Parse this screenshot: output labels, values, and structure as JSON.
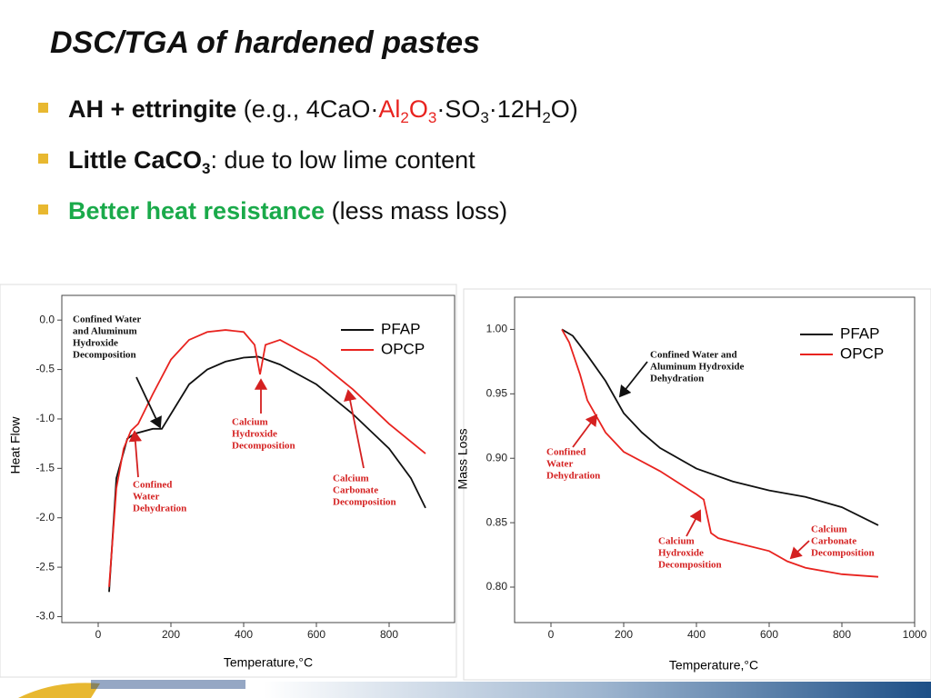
{
  "slide": {
    "title": "DSC/TGA of hardened pastes",
    "bullets": [
      [
        {
          "text": "AH + ettringite",
          "style": "bold"
        },
        {
          "text": " (e.g., 4CaO·",
          "style": "plain"
        },
        {
          "text": "Al",
          "style": "red"
        },
        {
          "text": "2",
          "style": "red-sub"
        },
        {
          "text": "O",
          "style": "red"
        },
        {
          "text": "3",
          "style": "red-sub"
        },
        {
          "text": "·SO",
          "style": "plain"
        },
        {
          "text": "3",
          "style": "sub"
        },
        {
          "text": "·12H",
          "style": "plain"
        },
        {
          "text": "2",
          "style": "sub"
        },
        {
          "text": "O)",
          "style": "plain"
        }
      ],
      [
        {
          "text": "Little CaCO",
          "style": "bold"
        },
        {
          "text": "3",
          "style": "bold-sub"
        },
        {
          "text": ": due to low lime content",
          "style": "plain"
        }
      ],
      [
        {
          "text": "Better heat resistance",
          "style": "green-bold"
        },
        {
          "text": " (less mass loss)",
          "style": "plain"
        }
      ]
    ]
  },
  "chart_data": [
    {
      "type": "line",
      "xlabel": "Temperature,°C",
      "ylabel": "Heat Flow",
      "legend": "upper right",
      "xlim": [
        -100,
        980
      ],
      "ylim": [
        -3.06,
        0.25
      ],
      "xticks": [
        0,
        200,
        400,
        600,
        800
      ],
      "yticks": [
        {
          "value": 0,
          "label": "0.0"
        },
        -0.5,
        {
          "value": -1,
          "label": "-1.0"
        },
        -1.5,
        {
          "value": -2,
          "label": "-2.0"
        },
        -2.5,
        {
          "value": -3,
          "label": "-3.0"
        }
      ],
      "series": [
        {
          "name": "PFAP",
          "color": "#111111",
          "x": [
            30,
            50,
            80,
            100,
            150,
            175,
            200,
            250,
            300,
            350,
            400,
            440,
            500,
            600,
            700,
            800,
            860,
            900
          ],
          "values": [
            -2.75,
            -1.6,
            -1.2,
            -1.15,
            -1.1,
            -1.1,
            -0.95,
            -0.65,
            -0.5,
            -0.42,
            -0.38,
            -0.37,
            -0.45,
            -0.65,
            -0.95,
            -1.3,
            -1.6,
            -1.9
          ]
        },
        {
          "name": "OPCP",
          "color": "#e8231f",
          "x": [
            30,
            50,
            70,
            90,
            110,
            150,
            200,
            250,
            300,
            350,
            400,
            430,
            445,
            460,
            500,
            600,
            700,
            800,
            900
          ],
          "values": [
            -2.7,
            -1.7,
            -1.3,
            -1.12,
            -1.05,
            -0.75,
            -0.4,
            -0.2,
            -0.12,
            -0.1,
            -0.12,
            -0.25,
            -0.55,
            -0.25,
            -0.2,
            -0.4,
            -0.7,
            -1.05,
            -1.35
          ]
        }
      ],
      "annotations": [
        {
          "lines": [
            "Confined Water",
            "and Aluminum",
            "Hydroxide",
            "Decomposition"
          ],
          "color": "#111111"
        },
        {
          "lines": [
            "Calcium",
            "Hydroxide",
            "Decomposition"
          ],
          "color": "#d42020"
        },
        {
          "lines": [
            "Confined",
            "Water",
            "Dehydration"
          ],
          "color": "#d42020"
        },
        {
          "lines": [
            "Calcium",
            "Carbonate",
            "Decomposition"
          ],
          "color": "#d42020"
        }
      ]
    },
    {
      "type": "line",
      "xlabel": "Temperature,°C",
      "ylabel": "Mass Loss",
      "legend": "upper right",
      "xlim": [
        -100,
        1000
      ],
      "ylim": [
        0.7725,
        1.025
      ],
      "xticks": [
        0,
        200,
        400,
        600,
        800,
        1000
      ],
      "yticks": [
        {
          "value": 1,
          "label": "1.00"
        },
        0.95,
        {
          "value": 0.9,
          "label": "0.90"
        },
        0.85,
        {
          "value": 0.8,
          "label": "0.80"
        }
      ],
      "series": [
        {
          "name": "PFAP",
          "color": "#111111",
          "x": [
            30,
            60,
            100,
            150,
            200,
            250,
            300,
            400,
            500,
            600,
            700,
            800,
            900
          ],
          "values": [
            1.0,
            0.995,
            0.98,
            0.96,
            0.935,
            0.92,
            0.908,
            0.892,
            0.882,
            0.875,
            0.87,
            0.862,
            0.848
          ]
        },
        {
          "name": "OPCP",
          "color": "#e8231f",
          "x": [
            30,
            50,
            80,
            100,
            150,
            200,
            300,
            400,
            420,
            430,
            440,
            460,
            500,
            600,
            650,
            700,
            800,
            900
          ],
          "values": [
            1.0,
            0.99,
            0.965,
            0.945,
            0.92,
            0.905,
            0.89,
            0.872,
            0.868,
            0.855,
            0.842,
            0.838,
            0.835,
            0.828,
            0.82,
            0.815,
            0.81,
            0.808
          ]
        }
      ],
      "annotations": [
        {
          "lines": [
            "Confined Water and",
            "Aluminum Hydroxide",
            "Dehydration"
          ],
          "color": "#111111"
        },
        {
          "lines": [
            "Confined",
            "Water",
            "Dehydration"
          ],
          "color": "#d42020"
        },
        {
          "lines": [
            "Calcium",
            "Hydroxide",
            "Decomposition"
          ],
          "color": "#d42020"
        },
        {
          "lines": [
            "Calcium",
            "Carbonate",
            "Decomposition"
          ],
          "color": "#d42020"
        }
      ]
    }
  ]
}
